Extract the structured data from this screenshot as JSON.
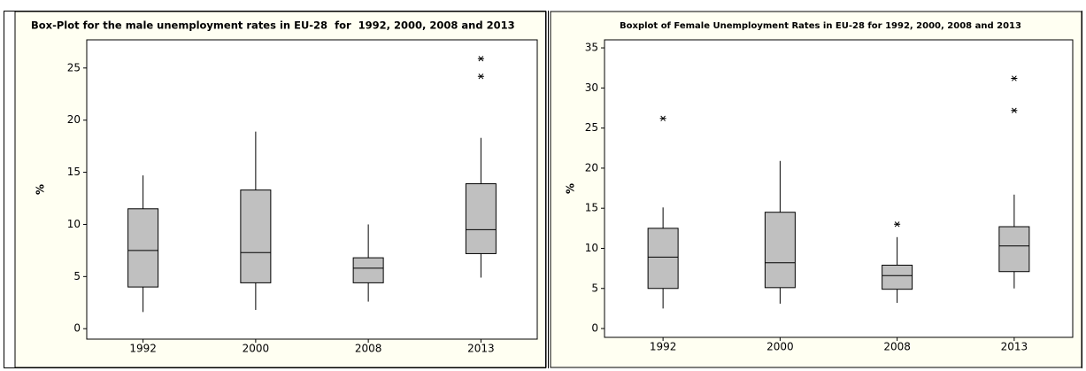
{
  "chart_data": [
    {
      "type": "box",
      "title": "Box-Plot for the male unemployment rates in EU-28  for  1992, 2000, 2008 and 2013",
      "y_label": "%",
      "categories": [
        "1992",
        "2000",
        "2008",
        "2013"
      ],
      "whisker_low": [
        1.6,
        1.8,
        2.6,
        4.9
      ],
      "q1": [
        4.0,
        4.4,
        4.4,
        7.2
      ],
      "median": [
        7.5,
        7.3,
        5.8,
        9.5
      ],
      "q3": [
        11.5,
        13.3,
        6.8,
        13.9
      ],
      "whisker_high": [
        14.7,
        18.9,
        10.0,
        18.3
      ],
      "outliers": [
        [],
        [],
        [],
        [
          25.9,
          24.2
        ]
      ],
      "color": "#c0c0c0",
      "ylim": [
        -1,
        27.7
      ],
      "yticks": [
        0,
        5,
        10,
        15,
        20,
        25
      ],
      "grid": false
    },
    {
      "type": "box",
      "title": "Boxplot of Female Unemployment Rates in EU-28 for 1992, 2000, 2008 and 2013",
      "y_label": "%",
      "categories": [
        "1992",
        "2000",
        "2008",
        "2013"
      ],
      "whisker_low": [
        2.5,
        3.1,
        3.2,
        5.0
      ],
      "q1": [
        5.0,
        5.1,
        4.9,
        7.1
      ],
      "median": [
        8.9,
        8.2,
        6.6,
        10.3
      ],
      "q3": [
        12.5,
        14.5,
        7.9,
        12.7
      ],
      "whisker_high": [
        15.1,
        20.9,
        11.4,
        16.7
      ],
      "outliers": [
        [
          26.2
        ],
        [],
        [
          13.0
        ],
        [
          31.2,
          27.2
        ]
      ],
      "color": "#c0c0c0",
      "ylim": [
        -1.1,
        36
      ],
      "yticks": [
        0,
        5,
        10,
        15,
        20,
        25,
        30,
        35
      ],
      "grid": false
    }
  ]
}
